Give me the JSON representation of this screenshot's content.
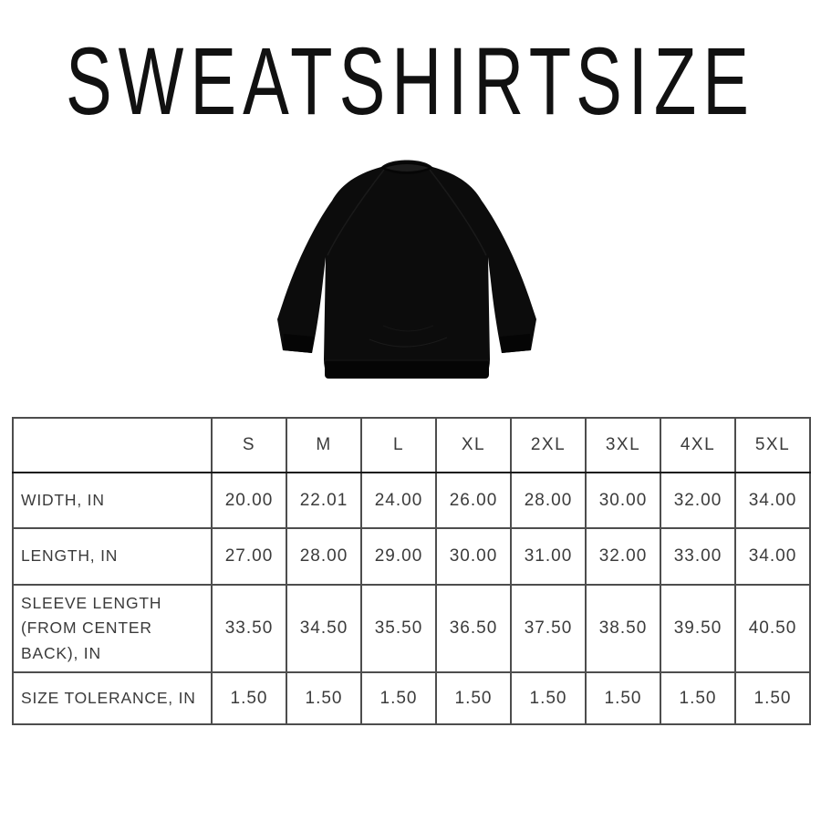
{
  "page": {
    "title": "SWEATSHIRT SIZE"
  },
  "product_image": {
    "name": "black-crewneck-sweatshirt-back-view",
    "color": "#0c0c0c"
  },
  "size_chart": {
    "columns": [
      "",
      "S",
      "M",
      "L",
      "XL",
      "2XL",
      "3XL",
      "4XL",
      "5XL"
    ],
    "rows": [
      {
        "label": "WIDTH, IN",
        "values": [
          "20.00",
          "22.01",
          "24.00",
          "26.00",
          "28.00",
          "30.00",
          "32.00",
          "34.00"
        ]
      },
      {
        "label": "LENGTH, IN",
        "values": [
          "27.00",
          "28.00",
          "29.00",
          "30.00",
          "31.00",
          "32.00",
          "33.00",
          "34.00"
        ]
      },
      {
        "label": "SLEEVE LENGTH\n(FROM CENTER\nBACK), IN",
        "values": [
          "33.50",
          "34.50",
          "35.50",
          "36.50",
          "37.50",
          "38.50",
          "39.50",
          "40.50"
        ]
      },
      {
        "label": "SIZE TOLERANCE, IN",
        "values": [
          "1.50",
          "1.50",
          "1.50",
          "1.50",
          "1.50",
          "1.50",
          "1.50",
          "1.50"
        ]
      }
    ]
  }
}
